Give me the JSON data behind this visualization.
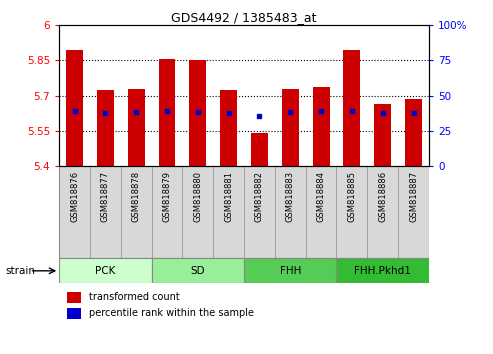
{
  "title": "GDS4492 / 1385483_at",
  "samples": [
    "GSM818876",
    "GSM818877",
    "GSM818878",
    "GSM818879",
    "GSM818880",
    "GSM818881",
    "GSM818882",
    "GSM818883",
    "GSM818884",
    "GSM818885",
    "GSM818886",
    "GSM818887"
  ],
  "bar_values": [
    5.895,
    5.725,
    5.73,
    5.855,
    5.85,
    5.725,
    5.54,
    5.73,
    5.735,
    5.895,
    5.665,
    5.685
  ],
  "percentile_values": [
    5.635,
    5.625,
    5.63,
    5.635,
    5.63,
    5.625,
    5.615,
    5.63,
    5.635,
    5.635,
    5.625,
    5.625
  ],
  "ymin": 5.4,
  "ymax": 6.0,
  "yticks_left": [
    5.4,
    5.55,
    5.7,
    5.85,
    6.0
  ],
  "ytick_labels_left": [
    "5.4",
    "5.55",
    "5.7",
    "5.85",
    "6"
  ],
  "grid_values": [
    5.55,
    5.7,
    5.85
  ],
  "right_yticks": [
    0,
    25,
    50,
    75,
    100
  ],
  "right_ytick_labels": [
    "0",
    "25",
    "50",
    "75",
    "100%"
  ],
  "bar_color": "#cc0000",
  "dot_color": "#0000cc",
  "groups": [
    {
      "label": "PCK",
      "start": 0,
      "end": 3,
      "color": "#ccffcc"
    },
    {
      "label": "SD",
      "start": 3,
      "end": 6,
      "color": "#99ee99"
    },
    {
      "label": "FHH",
      "start": 6,
      "end": 9,
      "color": "#55cc55"
    },
    {
      "label": "FHH.Pkhd1",
      "start": 9,
      "end": 12,
      "color": "#33bb33"
    }
  ],
  "bar_width": 0.55,
  "legend_items": [
    {
      "label": "transformed count",
      "color": "#cc0000"
    },
    {
      "label": "percentile rank within the sample",
      "color": "#0000cc"
    }
  ],
  "strain_label": "strain",
  "label_bg_color": "#d8d8d8",
  "label_border_color": "#888888"
}
